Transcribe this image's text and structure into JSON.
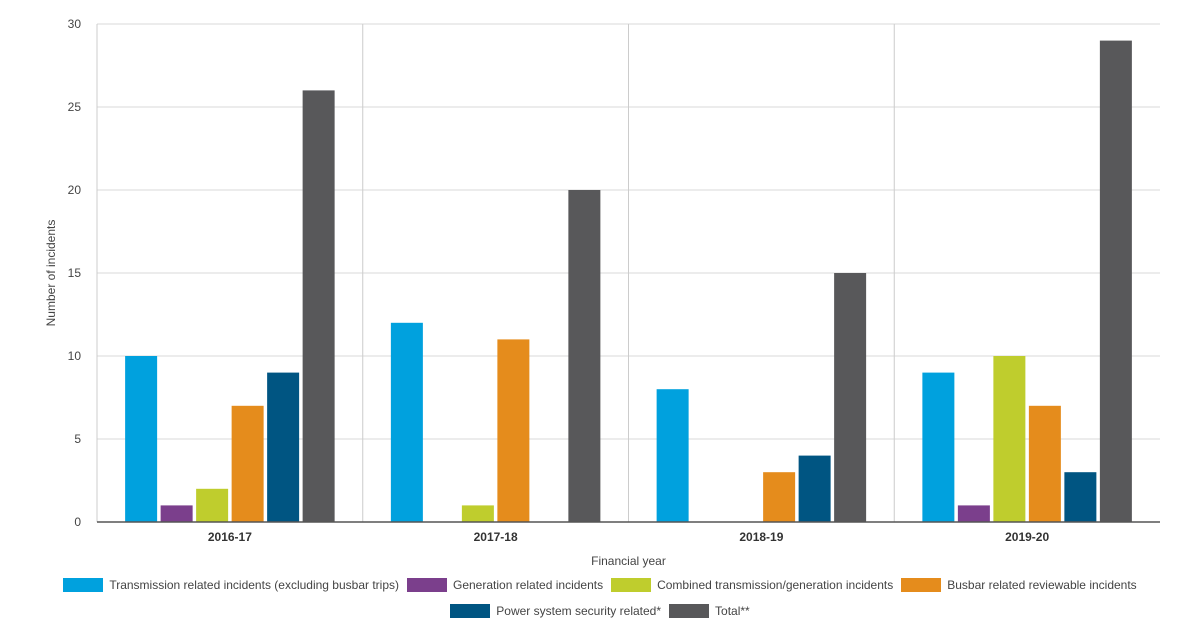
{
  "chart_data": {
    "type": "bar",
    "xlabel": "Financial year",
    "ylabel": "Number of incidents",
    "ylim": [
      0,
      30
    ],
    "yticks": [
      0,
      5,
      10,
      15,
      20,
      25,
      30
    ],
    "grid": true,
    "legend_position": "bottom",
    "categories": [
      "2016-17",
      "2017-18",
      "2018-19",
      "2019-20"
    ],
    "series": [
      {
        "name": "Transmission related incidents (excluding busbar trips)",
        "color": "#00a1de",
        "values": [
          10,
          12,
          8,
          9
        ]
      },
      {
        "name": "Generation related incidents",
        "color": "#7b3f8c",
        "values": [
          1,
          0,
          0,
          1
        ]
      },
      {
        "name": "Combined transmission/generation incidents",
        "color": "#bfcd2d",
        "values": [
          2,
          1,
          0,
          10
        ]
      },
      {
        "name": "Busbar related reviewable incidents",
        "color": "#e58c1c",
        "values": [
          7,
          11,
          3,
          7
        ]
      },
      {
        "name": "Power system security related*",
        "color": "#005582",
        "values": [
          9,
          0,
          4,
          3
        ]
      },
      {
        "name": "Total**",
        "color": "#58585a",
        "values": [
          26,
          20,
          15,
          29
        ]
      }
    ]
  }
}
